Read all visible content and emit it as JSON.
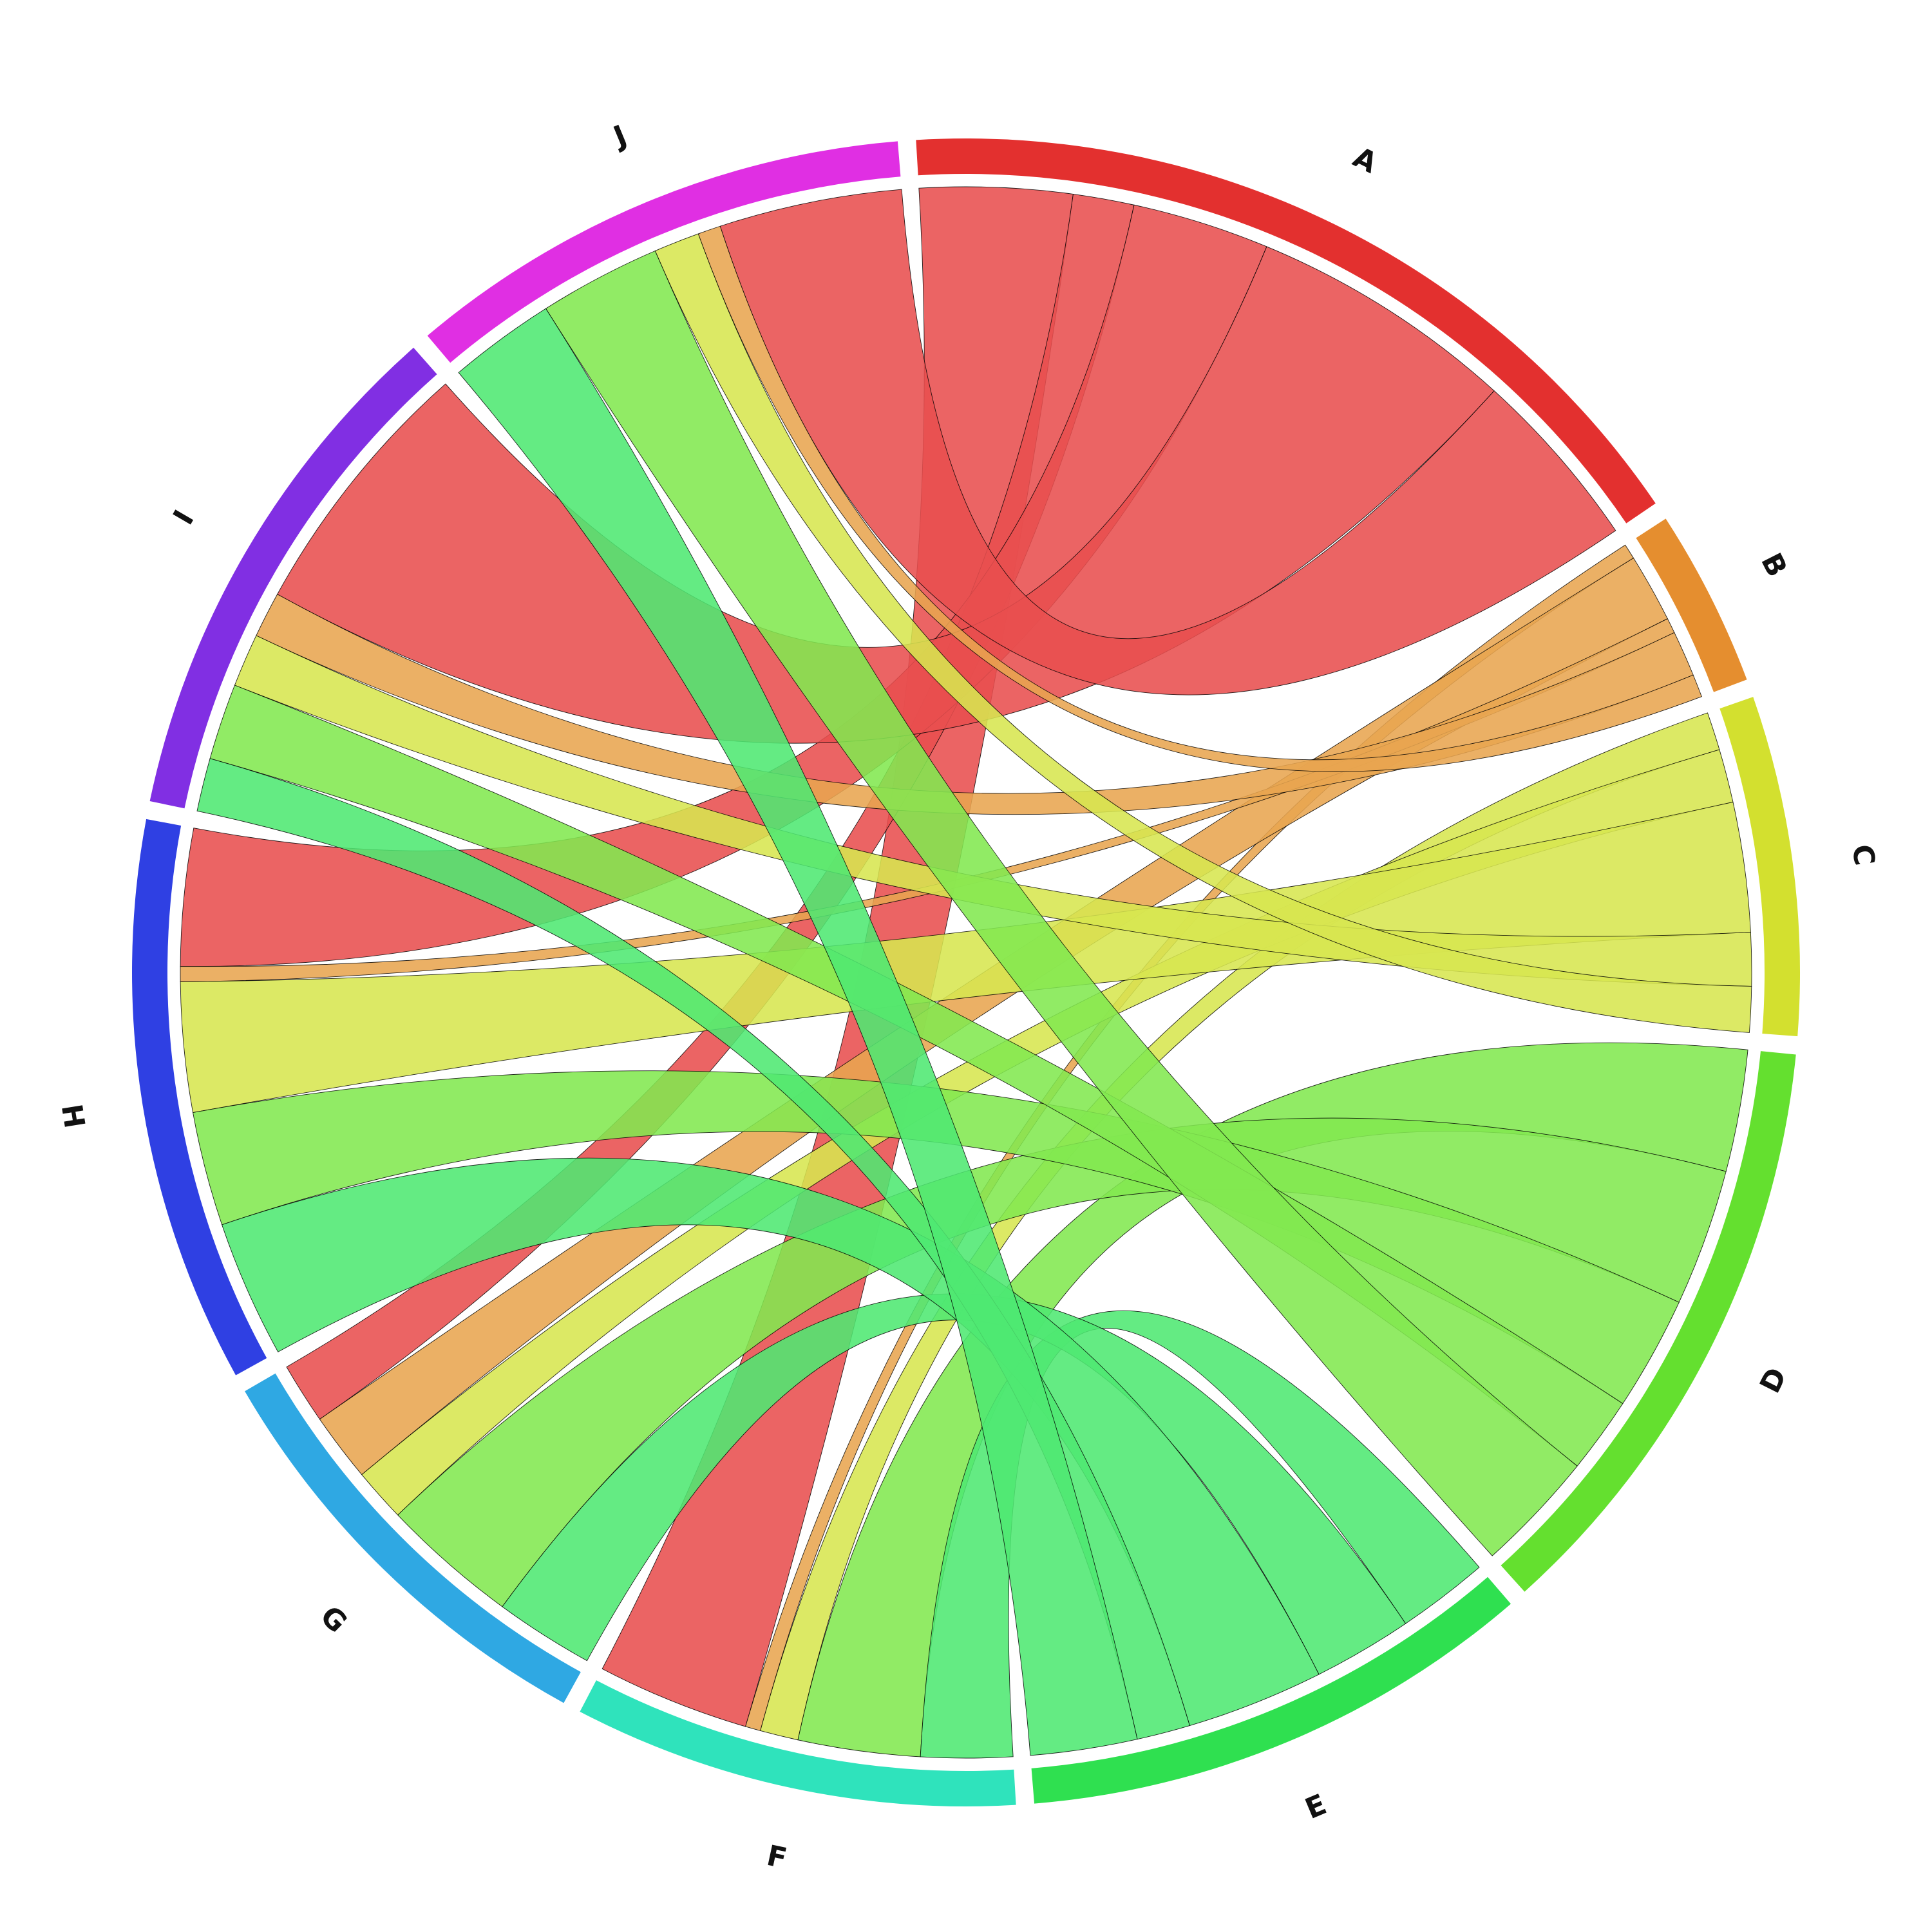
{
  "chart_data": {
    "type": "chord",
    "title": "",
    "groups": [
      {
        "name": "A",
        "color": "#E3302F",
        "ribbon_color": "#E84F4F"
      },
      {
        "name": "B",
        "color": "#E58E2F",
        "ribbon_color": "#E8A550"
      },
      {
        "name": "C",
        "color": "#D3E02F",
        "ribbon_color": "#D7E650"
      },
      {
        "name": "D",
        "color": "#64E02F",
        "ribbon_color": "#82E850"
      },
      {
        "name": "E",
        "color": "#2FE050",
        "ribbon_color": "#4FE872"
      },
      {
        "name": "F",
        "color": "#2FE3BC"
      },
      {
        "name": "G",
        "color": "#2FA8E3"
      },
      {
        "name": "H",
        "color": "#2F40E3"
      },
      {
        "name": "I",
        "color": "#812FE3"
      },
      {
        "name": "J",
        "color": "#E02FE3"
      }
    ],
    "flows": [
      {
        "source": "A",
        "target": "F",
        "value": 20
      },
      {
        "source": "A",
        "target": "G",
        "value": 8
      },
      {
        "source": "A",
        "target": "H",
        "value": 18
      },
      {
        "source": "A",
        "target": "I",
        "value": 35
      },
      {
        "source": "A",
        "target": "J",
        "value": 24
      },
      {
        "source": "B",
        "target": "F",
        "value": 2
      },
      {
        "source": "B",
        "target": "G",
        "value": 9
      },
      {
        "source": "B",
        "target": "H",
        "value": 2
      },
      {
        "source": "B",
        "target": "I",
        "value": 6
      },
      {
        "source": "B",
        "target": "J",
        "value": 3
      },
      {
        "source": "C",
        "target": "F",
        "value": 5
      },
      {
        "source": "C",
        "target": "G",
        "value": 7
      },
      {
        "source": "C",
        "target": "H",
        "value": 17
      },
      {
        "source": "C",
        "target": "I",
        "value": 7
      },
      {
        "source": "C",
        "target": "J",
        "value": 6
      },
      {
        "source": "D",
        "target": "F",
        "value": 16
      },
      {
        "source": "D",
        "target": "G",
        "value": 18
      },
      {
        "source": "D",
        "target": "H",
        "value": 15
      },
      {
        "source": "D",
        "target": "I",
        "value": 10
      },
      {
        "source": "D",
        "target": "J",
        "value": 16
      },
      {
        "source": "E",
        "target": "F",
        "value": 12
      },
      {
        "source": "E",
        "target": "G",
        "value": 13
      },
      {
        "source": "E",
        "target": "H",
        "value": 18
      },
      {
        "source": "E",
        "target": "I",
        "value": 7
      },
      {
        "source": "E",
        "target": "J",
        "value": 14
      }
    ]
  }
}
